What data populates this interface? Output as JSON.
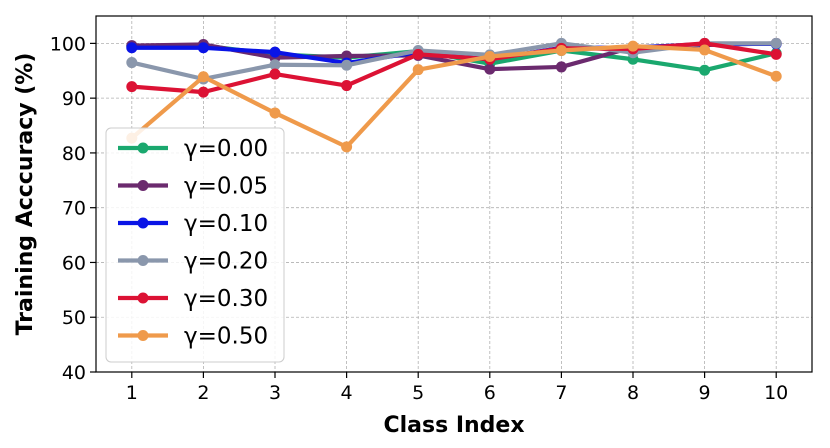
{
  "chart_data": {
    "type": "line",
    "title": "",
    "xlabel": "Class Index",
    "ylabel": "Training Acccuracy (%)",
    "x": [
      1,
      2,
      3,
      4,
      5,
      6,
      7,
      8,
      9,
      10
    ],
    "xlim": [
      0.5,
      10.5
    ],
    "ylim": [
      40,
      105
    ],
    "yticks": [
      40,
      50,
      60,
      70,
      80,
      90,
      100
    ],
    "grid": true,
    "legend_position": "lower-left",
    "series": [
      {
        "name": "γ=0.00",
        "color": "#1aa86e",
        "values": [
          99.5,
          99.6,
          98.0,
          97.4,
          98.6,
          96.3,
          98.7,
          97.1,
          95.1,
          98.2
        ]
      },
      {
        "name": "γ=0.05",
        "color": "#6b2a6e",
        "values": [
          99.6,
          99.8,
          97.4,
          97.7,
          97.8,
          95.3,
          95.7,
          99.3,
          99.7,
          100.0
        ]
      },
      {
        "name": "γ=0.10",
        "color": "#0a14e6",
        "values": [
          99.2,
          99.2,
          98.4,
          96.4,
          98.4,
          97.1,
          99.2,
          99.2,
          99.9,
          99.9
        ]
      },
      {
        "name": "γ=0.20",
        "color": "#8a97ac",
        "values": [
          96.5,
          93.5,
          96.1,
          96.0,
          98.7,
          97.9,
          100.0,
          98.3,
          100.0,
          100.0
        ]
      },
      {
        "name": "γ=0.30",
        "color": "#dc1234",
        "values": [
          92.1,
          91.1,
          94.4,
          92.3,
          98.0,
          97.1,
          99.1,
          99.0,
          100.0,
          98.0
        ]
      },
      {
        "name": "γ=0.50",
        "color": "#ef9a4b",
        "values": [
          82.7,
          93.9,
          87.3,
          81.1,
          95.2,
          97.6,
          98.7,
          99.5,
          98.8,
          94.0
        ]
      }
    ]
  }
}
